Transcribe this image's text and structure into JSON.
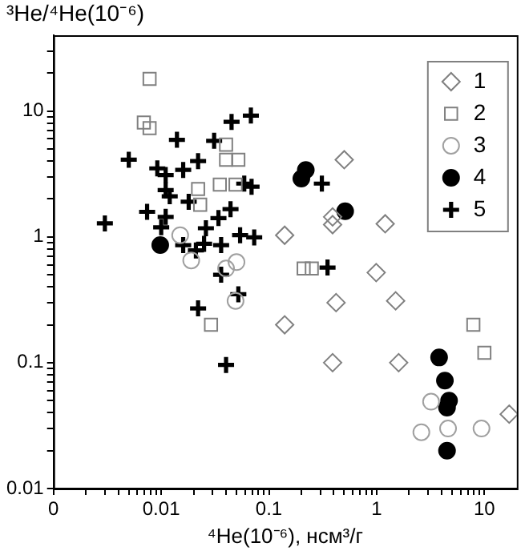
{
  "chart_data": {
    "type": "scatter",
    "xlabel": "⁴He(10⁻⁶), нсм³/г",
    "ylabel": "³He/⁴He(10⁻⁶)",
    "log": "xy",
    "grid": false,
    "legend": "top right",
    "xlim": [
      0.001,
      20
    ],
    "ylim": [
      0.01,
      40
    ],
    "xticks": [
      {
        "value": 0.001,
        "label": "0"
      },
      {
        "value": 0.002,
        "label": null
      },
      {
        "value": 0.003,
        "label": null
      },
      {
        "value": 0.004,
        "label": null
      },
      {
        "value": 0.005,
        "label": null
      },
      {
        "value": 0.006,
        "label": null
      },
      {
        "value": 0.007,
        "label": null
      },
      {
        "value": 0.008,
        "label": null
      },
      {
        "value": 0.009,
        "label": null
      },
      0.01,
      {
        "value": 0.02,
        "label": null
      },
      {
        "value": 0.03,
        "label": null
      },
      {
        "value": 0.04,
        "label": null
      },
      {
        "value": 0.05,
        "label": null
      },
      {
        "value": 0.06,
        "label": null
      },
      {
        "value": 0.07,
        "label": null
      },
      {
        "value": 0.08,
        "label": null
      },
      {
        "value": 0.09,
        "label": null
      },
      0.1,
      {
        "value": 0.2,
        "label": null
      },
      {
        "value": 0.3,
        "label": null
      },
      {
        "value": 0.4,
        "label": null
      },
      {
        "value": 0.5,
        "label": null
      },
      {
        "value": 0.6,
        "label": null
      },
      {
        "value": 0.7,
        "label": null
      },
      {
        "value": 0.8,
        "label": null
      },
      {
        "value": 0.9,
        "label": null
      },
      1,
      {
        "value": 2,
        "label": null
      },
      {
        "value": 3,
        "label": null
      },
      {
        "value": 4,
        "label": null
      },
      {
        "value": 5,
        "label": null
      },
      {
        "value": 6,
        "label": null
      },
      {
        "value": 7,
        "label": null
      },
      {
        "value": 8,
        "label": null
      },
      {
        "value": 9,
        "label": null
      },
      10
    ],
    "yticks": [
      0.01,
      {
        "value": 0.02,
        "label": null
      },
      {
        "value": 0.03,
        "label": null
      },
      {
        "value": 0.04,
        "label": null
      },
      {
        "value": 0.05,
        "label": null
      },
      {
        "value": 0.06,
        "label": null
      },
      {
        "value": 0.07,
        "label": null
      },
      {
        "value": 0.08,
        "label": null
      },
      {
        "value": 0.09,
        "label": null
      },
      0.1,
      {
        "value": 0.2,
        "label": null
      },
      {
        "value": 0.3,
        "label": null
      },
      {
        "value": 0.4,
        "label": null
      },
      {
        "value": 0.5,
        "label": null
      },
      {
        "value": 0.6,
        "label": null
      },
      {
        "value": 0.7,
        "label": null
      },
      {
        "value": 0.8,
        "label": null
      },
      {
        "value": 0.9,
        "label": null
      },
      1,
      {
        "value": 2,
        "label": null
      },
      {
        "value": 3,
        "label": null
      },
      {
        "value": 4,
        "label": null
      },
      {
        "value": 5,
        "label": null
      },
      {
        "value": 6,
        "label": null
      },
      {
        "value": 7,
        "label": null
      },
      {
        "value": 8,
        "label": null
      },
      {
        "value": 9,
        "label": null
      },
      10,
      {
        "value": 20,
        "label": null
      },
      {
        "value": 30,
        "label": null
      }
    ],
    "series": [
      {
        "name": "1",
        "color": "#808080",
        "marker": "diamond",
        "x": [
          0.14,
          0.5,
          0.39,
          0.39,
          1.2,
          0.99,
          0.42,
          1.5,
          0.14,
          0.39,
          1.6,
          17
        ],
        "values": [
          1.03,
          4.1,
          1.44,
          1.25,
          1.27,
          0.52,
          0.3,
          0.31,
          0.2,
          0.1,
          0.1,
          0.039
        ]
      },
      {
        "name": "2",
        "color": "#808080",
        "marker": "square",
        "x": [
          0.0078,
          0.0069,
          0.0078,
          0.04,
          0.04,
          0.052,
          0.022,
          0.023,
          0.035,
          0.049,
          0.029,
          0.21,
          0.25,
          7.9,
          10
        ],
        "values": [
          18,
          8.1,
          7.3,
          5.4,
          4.1,
          4.1,
          2.4,
          1.8,
          2.6,
          2.6,
          0.2,
          0.56,
          0.56,
          0.2,
          0.12
        ]
      },
      {
        "name": "3",
        "color": "#a0a0a0",
        "marker": "circle",
        "x": [
          0.015,
          0.019,
          0.04,
          0.05,
          0.049,
          3.2,
          2.6,
          4.6,
          9.4
        ],
        "values": [
          1.03,
          0.65,
          0.56,
          0.63,
          0.31,
          0.049,
          0.028,
          0.03,
          0.03
        ]
      },
      {
        "name": "4",
        "color": "#000000",
        "marker": "circle",
        "x": [
          0.0098,
          0.2,
          0.22,
          0.51,
          3.8,
          4.3,
          4.7,
          4.5,
          4.5
        ],
        "values": [
          0.86,
          2.9,
          3.4,
          1.6,
          0.11,
          0.072,
          0.05,
          0.044,
          0.02
        ]
      },
      {
        "name": "5",
        "color": "#000000",
        "marker": "cross",
        "x": [
          0.068,
          0.045,
          0.014,
          0.031,
          0.005,
          0.0092,
          0.011,
          0.016,
          0.022,
          0.011,
          0.012,
          0.018,
          0.059,
          0.069,
          0.0074,
          0.011,
          0.01,
          0.044,
          0.034,
          0.026,
          0.003,
          0.054,
          0.073,
          0.036,
          0.025,
          0.016,
          0.021,
          0.036,
          0.31,
          0.35,
          0.052,
          0.022,
          0.04
        ],
        "values": [
          9.2,
          8.2,
          5.9,
          5.8,
          4.1,
          3.5,
          3.1,
          3.4,
          4,
          2.35,
          2.1,
          1.9,
          2.65,
          2.5,
          1.58,
          1.44,
          1.19,
          1.66,
          1.41,
          1.17,
          1.28,
          1.03,
          0.99,
          0.86,
          0.88,
          0.86,
          0.78,
          0.5,
          2.65,
          0.57,
          0.35,
          0.27,
          0.096
        ]
      }
    ]
  }
}
